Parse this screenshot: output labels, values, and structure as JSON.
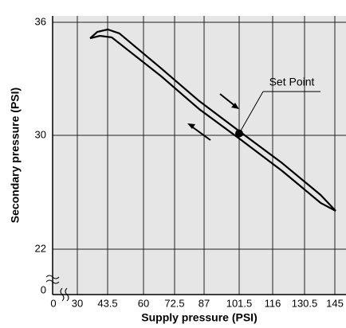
{
  "chart_data": {
    "type": "line",
    "x_label": "Supply pressure (PSI)",
    "y_label": "Secondary pressure (PSI)",
    "xlim": [
      0,
      145
    ],
    "xticks": [
      0,
      30,
      43.5,
      60,
      72.5,
      87,
      101.5,
      116,
      130.5,
      145
    ],
    "ylim": [
      0,
      36
    ],
    "yticks": [
      0,
      22,
      30,
      36
    ],
    "grid": true,
    "series": [
      {
        "color": "#000000",
        "x": [
          35.7,
          38.9,
          43.6,
          48.9,
          66.8,
          84.6,
          102.5,
          120.4,
          138.2,
          145.4
        ],
        "values": [
          35.15,
          35.49,
          35.62,
          35.41,
          33.59,
          31.82,
          30.13,
          28.04,
          25.81,
          24.69
        ]
      },
      {
        "color": "#000000",
        "x": [
          35.7,
          40.0,
          45.4,
          66.8,
          84.6,
          102.5,
          120.4,
          138.2,
          145.4
        ],
        "values": [
          35.15,
          35.28,
          35.2,
          33.17,
          31.39,
          29.66,
          27.49,
          25.25,
          24.69
        ]
      }
    ],
    "annotation": {
      "text": "Set Point",
      "x": 101.5,
      "y": 30.1
    }
  }
}
